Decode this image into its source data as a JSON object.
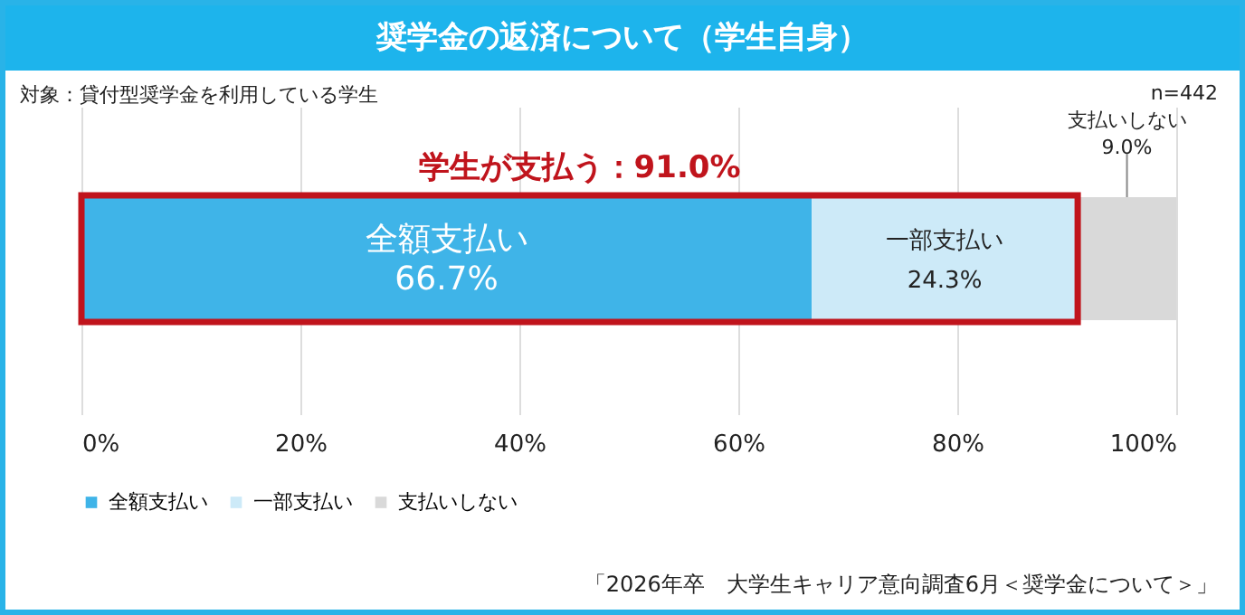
{
  "chart_data": {
    "type": "bar",
    "title": "奨学金の返済について（学生自身）",
    "annotations": [
      "対象：貸付型奨学金を利用している学生",
      "n=442",
      "学生が支払う：91.0%",
      "「2026年卒　大学生キャリア意向調査6月＜奨学金について＞」"
    ],
    "categories": [
      null
    ],
    "orientation": "horizontal",
    "stacked": true,
    "series": [
      {
        "name": "全額支払い",
        "color": "#3fb4e8",
        "values": [
          66.7
        ],
        "value_labels": [
          "66.7%"
        ]
      },
      {
        "name": "一部支払い",
        "color": "#cdeaf8",
        "values": [
          24.3
        ],
        "value_labels": [
          "24.3%"
        ]
      },
      {
        "name": "支払いしない",
        "color": "#d9d9d9",
        "values": [
          9.0
        ],
        "value_labels": [
          "9.0%"
        ]
      }
    ],
    "xlim": [
      0,
      100
    ],
    "xticks": [
      {
        "value": 0,
        "label": "0%"
      },
      {
        "value": 20,
        "label": "20%"
      },
      {
        "value": 40,
        "label": "40%"
      },
      {
        "value": 60,
        "label": "60%"
      },
      {
        "value": 80,
        "label": "80%"
      },
      {
        "value": 100,
        "label": "100%"
      }
    ],
    "grid": "x",
    "legend": "bottom"
  }
}
